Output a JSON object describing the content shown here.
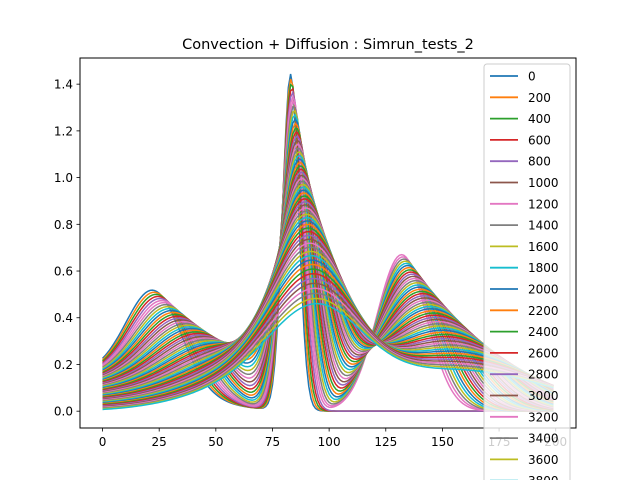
{
  "chart_data": {
    "type": "line",
    "title": "Convection + Diffusion : Simrun_tests_2",
    "xlabel": "",
    "ylabel": "",
    "xlim": [
      -9.95,
      208.95
    ],
    "ylim": [
      -0.072,
      1.512
    ],
    "xticks": [
      0,
      25,
      50,
      75,
      100,
      125,
      150,
      175,
      200
    ],
    "yticks": [
      0.0,
      0.2,
      0.4,
      0.6,
      0.8,
      1.0,
      1.2,
      1.4
    ],
    "legend_position": "upper right",
    "x_domain": [
      0,
      199
    ],
    "colors": [
      "#1f77b4",
      "#ff7f0e",
      "#2ca02c",
      "#d62728",
      "#9467bd",
      "#8c564b",
      "#e377c2",
      "#7f7f7f",
      "#bcbd22",
      "#17becf"
    ],
    "peak_b_start_color": "#e377c2",
    "legend_entries": [
      "0",
      "200",
      "400",
      "600",
      "800",
      "1000",
      "1200",
      "1400",
      "1600",
      "1800",
      "2000",
      "2200",
      "2400",
      "2600",
      "2800",
      "3000",
      "3200",
      "3400",
      "3600",
      "3800"
    ],
    "series_count": 60,
    "series_model": "Each series is the sum of three Gaussian pulses y = A*exp(-0.5*((x-c)/w)^2) (plus a baseline in pulse 1), interpolated linearly from its first to its last value across the series.",
    "pulse_1": {
      "amplitude": [
        0.395,
        0.145
      ],
      "center": [
        23,
        78
      ],
      "width": [
        12,
        32
      ],
      "baseline": [
        0.163,
        0.0
      ]
    },
    "pulse_2": {
      "amplitude": [
        1.44,
        0.295
      ],
      "center": [
        83,
        95
      ],
      "width": [
        3.5,
        20
      ]
    },
    "pulse_3": {
      "start_series": 5,
      "amplitude": [
        0.67,
        0.17
      ],
      "center": [
        132,
        160
      ],
      "width": [
        11,
        38
      ]
    }
  }
}
